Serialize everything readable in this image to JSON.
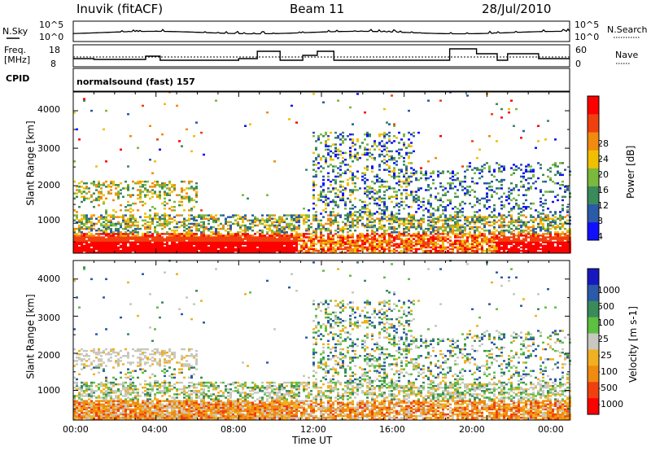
{
  "header": {
    "station": "Inuvik (fitACF)",
    "beam": "Beam 11",
    "date": "28/Jul/2010"
  },
  "status_panels": {
    "nsky_label": "N.Sky",
    "nsky_ticks": [
      "10^5",
      "10^0"
    ],
    "nsearch_label": "N.Search",
    "nsearch_ticks": [
      "10^5",
      "10^0"
    ],
    "freq_label_1": "Freq.",
    "freq_label_2": "[MHz]",
    "freq_ticks": [
      "18",
      "8"
    ],
    "nave_label": "Nave",
    "nave_ticks": [
      "60",
      "0"
    ],
    "cpid_label": "CPID",
    "cpid_value": "normalsound (fast) 157"
  },
  "colors": {
    "power_scale": [
      "#1010ff",
      "#2a5aa8",
      "#3a8a5a",
      "#7cb83c",
      "#f0c000",
      "#f08a10",
      "#f04010",
      "#ff0000"
    ],
    "velocity_scale": [
      "#1818c0",
      "#2a5aa8",
      "#3a8a5a",
      "#5cc040",
      "#c8c8c0",
      "#f0b020",
      "#f08a10",
      "#f04010",
      "#ff0000"
    ]
  },
  "chart_data": [
    {
      "type": "heatmap",
      "title": "",
      "xlabel": "Time UT",
      "ylabel": "Slant Range [km]",
      "x_ticks": [
        "00:00",
        "04:00",
        "08:00",
        "12:00",
        "16:00",
        "20:00",
        "00:00"
      ],
      "y_ticks": [
        "1000",
        "2000",
        "3000",
        "4000"
      ],
      "xlim_hours": [
        0,
        24
      ],
      "ylim_km": [
        200,
        4500
      ],
      "colorbar": {
        "label": "Power [dB]",
        "ticks": [
          "4",
          "8",
          "12",
          "16",
          "20",
          "24",
          "28"
        ],
        "range": [
          0,
          30
        ]
      },
      "features": [
        {
          "time_h": [
            0,
            10.5
          ],
          "range_km": [
            200,
            600
          ],
          "value": "28+"
        },
        {
          "time_h": [
            0,
            24
          ],
          "range_km": [
            600,
            1200
          ],
          "value": "8-20"
        },
        {
          "time_h": [
            12,
            16
          ],
          "range_km": [
            1200,
            3300
          ],
          "value": "8-20"
        }
      ]
    },
    {
      "type": "heatmap",
      "title": "",
      "xlabel": "Time UT",
      "ylabel": "Slant Range [km]",
      "x_ticks": [
        "00:00",
        "04:00",
        "08:00",
        "12:00",
        "16:00",
        "20:00",
        "00:00"
      ],
      "y_ticks": [
        "1000",
        "2000",
        "3000",
        "4000"
      ],
      "xlim_hours": [
        0,
        24
      ],
      "ylim_km": [
        200,
        4500
      ],
      "colorbar": {
        "label": "Velocity [m s-1]",
        "ticks": [
          "1000",
          "500",
          "100",
          "25",
          "-25",
          "-100",
          "-500",
          "-1000"
        ]
      },
      "features": [
        {
          "time_h": [
            0,
            24
          ],
          "range_km": [
            200,
            700
          ],
          "value": "-100 to -500"
        },
        {
          "time_h": [
            3,
            12
          ],
          "range_km": [
            400,
            1100
          ],
          "value": "25 to 500"
        },
        {
          "time_h": [
            0,
            6
          ],
          "range_km": [
            1600,
            2200
          ],
          "value": "-25 to 25"
        }
      ]
    }
  ]
}
